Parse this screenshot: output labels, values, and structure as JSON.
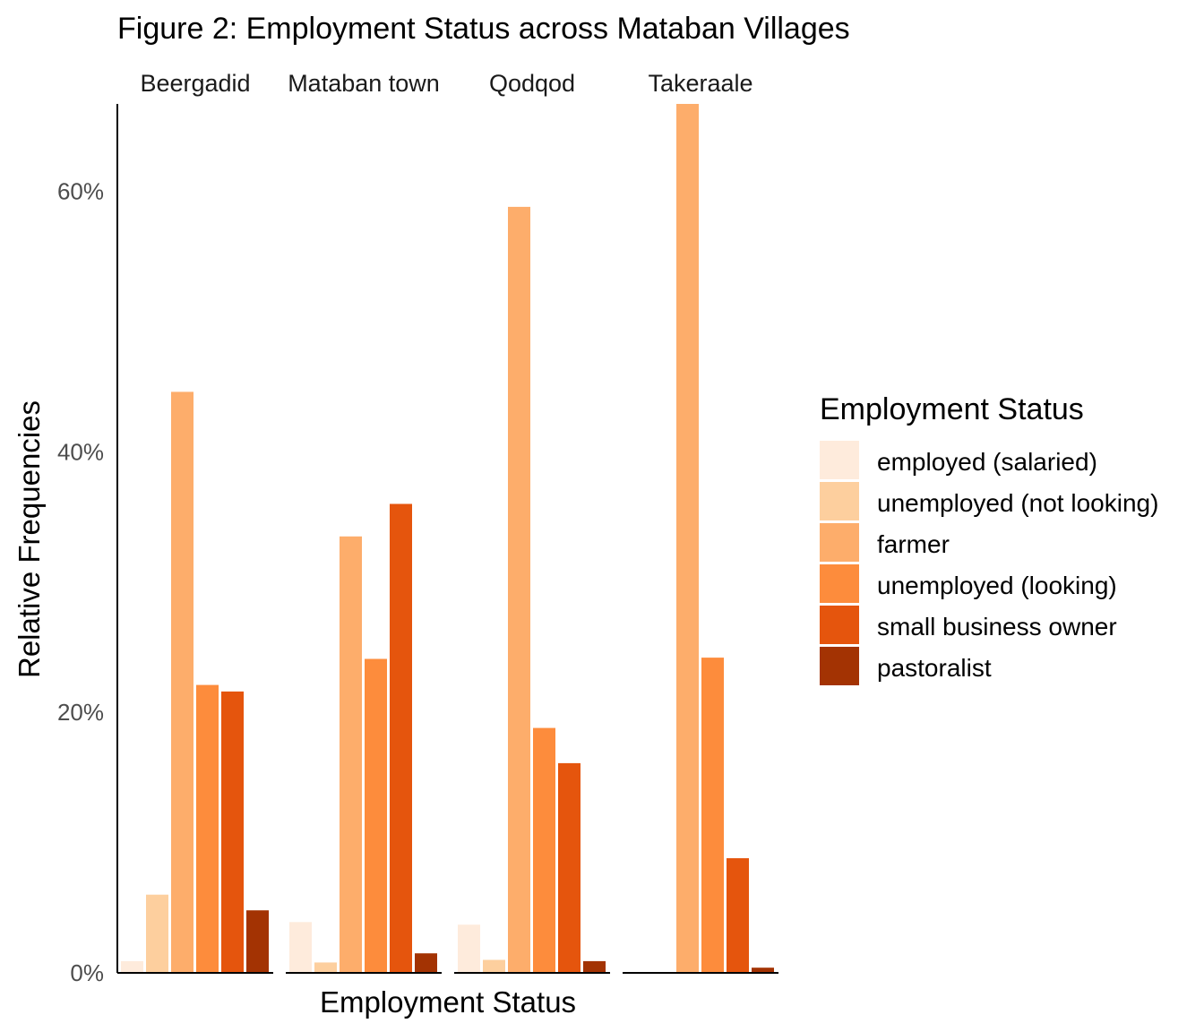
{
  "chart_data": {
    "type": "bar",
    "title": "Figure 2: Employment Status across Mataban Villages",
    "xlabel": "Employment Status",
    "ylabel": "Relative Frequencies",
    "yticks": [
      "0%",
      "20%",
      "40%",
      "60%"
    ],
    "ylim": [
      0,
      0.667
    ],
    "grid": false,
    "legend": {
      "title": "Employment Status",
      "position": "right"
    },
    "categories": [
      "employed (salaried)",
      "unemployed (not looking)",
      "farmer",
      "unemployed (looking)",
      "small business owner",
      "pastoralist"
    ],
    "colors": [
      "#FEEBDC",
      "#FDCF9E",
      "#FDAD6B",
      "#FD8C3C",
      "#E5550D",
      "#A33303"
    ],
    "facets": [
      {
        "name": "Beergadid",
        "values": [
          0.009,
          0.06,
          0.446,
          0.221,
          0.216,
          0.048
        ]
      },
      {
        "name": "Mataban town",
        "values": [
          0.039,
          0.008,
          0.335,
          0.241,
          0.36,
          0.015
        ]
      },
      {
        "name": "Qodqod",
        "values": [
          0.037,
          0.01,
          0.588,
          0.188,
          0.161,
          0.009
        ]
      },
      {
        "name": "Takeraale",
        "values": [
          null,
          null,
          0.667,
          0.242,
          0.088,
          0.004
        ]
      }
    ]
  }
}
